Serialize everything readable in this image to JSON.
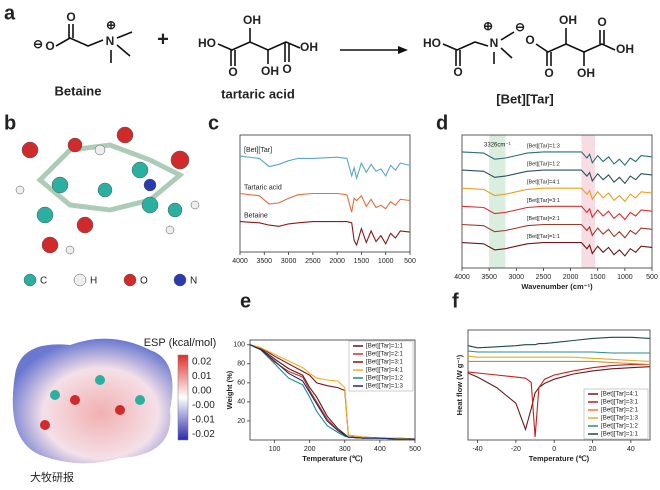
{
  "panel_labels": [
    "a",
    "b",
    "c",
    "d",
    "e",
    "f"
  ],
  "scheme": {
    "betaine": {
      "atoms": [
        "⊖",
        "O",
        "O",
        "N",
        "⊕"
      ],
      "name": "Betaine"
    },
    "plus": "+",
    "tartaric_acid": {
      "atoms": [
        "HO",
        "O",
        "OH",
        "OH",
        "O",
        "OH"
      ],
      "name": "tartaric acid"
    },
    "product": {
      "atoms": [
        "HO",
        "O",
        "N",
        "⊕",
        "⊖",
        "O",
        "O",
        "OH",
        "OH",
        "O",
        "OH"
      ],
      "name": "[Bet][Tar]"
    }
  },
  "atom_legend": [
    "C",
    "H",
    "O",
    "N"
  ],
  "esp": {
    "title": "ESP (kcal/mol)",
    "ticks": [
      "0.02",
      "0.01",
      "0.00",
      "-0.00",
      "-0.01",
      "-0.02"
    ]
  },
  "watermark": "大牧研报",
  "chart_data": [
    {
      "type": "line",
      "legend": "inline",
      "x": [
        4000,
        3600,
        3400,
        3200,
        3000,
        2800,
        2500,
        2000,
        1800,
        1700,
        1650,
        1600,
        1500,
        1400,
        1300,
        1200,
        1100,
        1000,
        900,
        800,
        700,
        500
      ],
      "xlim": [
        4000,
        500
      ],
      "xticks": [
        4000,
        3500,
        3000,
        2500,
        2000,
        1500,
        1000,
        500
      ],
      "ylim": [
        0,
        10
      ],
      "series": [
        {
          "name": "[Bet][Tar]",
          "color": "#5aa6c8",
          "values": [
            8.2,
            8.0,
            7.3,
            7.5,
            7.8,
            8.0,
            8.0,
            8.1,
            8.0,
            6.5,
            7.2,
            6.3,
            7.6,
            6.8,
            7.5,
            6.9,
            7.1,
            6.5,
            7.4,
            7.0,
            7.6,
            7.4
          ]
        },
        {
          "name": "Tartaric acid",
          "color": "#e0703a",
          "values": [
            5.0,
            4.8,
            4.1,
            4.2,
            4.6,
            4.9,
            5.0,
            5.0,
            4.9,
            3.4,
            4.6,
            4.4,
            4.8,
            3.9,
            4.5,
            3.8,
            4.0,
            3.7,
            4.3,
            4.0,
            4.5,
            4.4
          ]
        },
        {
          "name": "Betaine",
          "color": "#8b1a1a",
          "values": [
            2.6,
            2.5,
            2.3,
            2.2,
            2.4,
            2.5,
            2.6,
            2.6,
            2.6,
            2.5,
            1.0,
            0.6,
            2.0,
            0.8,
            1.8,
            0.9,
            1.4,
            0.7,
            1.6,
            1.2,
            1.8,
            1.7
          ]
        }
      ]
    },
    {
      "type": "line",
      "legend": "inline",
      "xlabel": "Wavenumber (cm⁻¹)",
      "annotation": "3326cm⁻¹",
      "bands": [
        [
          3500,
          3200
        ],
        [
          1800,
          1550
        ]
      ],
      "band_colors": [
        "#cfead6",
        "#f6d3dc"
      ],
      "x": [
        4000,
        3600,
        3400,
        3200,
        3000,
        2800,
        2500,
        2000,
        1800,
        1700,
        1650,
        1600,
        1500,
        1400,
        1300,
        1200,
        1100,
        1000,
        900,
        800,
        700,
        500
      ],
      "xlim": [
        4000,
        500
      ],
      "xticks": [
        4000,
        3500,
        3000,
        2500,
        2000,
        1500,
        1000,
        500
      ],
      "ylim": [
        1,
        12
      ],
      "series": [
        {
          "name": "[Bet][Tar]=1:3",
          "color": "#2a6f7a",
          "values": [
            10.6,
            10.5,
            10,
            10.1,
            10.3,
            10.5,
            10.6,
            10.6,
            10.6,
            10.1,
            10.4,
            9.7,
            10.3,
            9.8,
            10.2,
            9.6,
            10,
            9.5,
            10.1,
            9.8,
            10.3,
            10.2
          ]
        },
        {
          "name": "[Bet][Tar]=1:2",
          "color": "#2f4f5f",
          "values": [
            9.1,
            9,
            8.5,
            8.6,
            8.8,
            9,
            9.1,
            9.1,
            9.1,
            8.6,
            8.9,
            8.2,
            8.8,
            8.3,
            8.7,
            8.1,
            8.5,
            8,
            8.6,
            8.3,
            8.8,
            8.7
          ]
        },
        {
          "name": "[Bet][Tar]=4:1",
          "color": "#e8a020",
          "values": [
            7.6,
            7.5,
            7,
            7.1,
            7.3,
            7.5,
            7.6,
            7.6,
            7.6,
            7.1,
            7.4,
            6.7,
            7.3,
            6.8,
            7.2,
            6.6,
            7,
            6.5,
            7.1,
            6.8,
            7.3,
            7.2
          ]
        },
        {
          "name": "[Bet][Tar]=3:1",
          "color": "#d83030",
          "values": [
            6.1,
            6,
            5.5,
            5.6,
            5.8,
            6,
            6.1,
            6.1,
            6.1,
            5.6,
            5.9,
            5.2,
            5.8,
            5.3,
            5.7,
            5.1,
            5.5,
            5,
            5.6,
            5.3,
            5.8,
            5.7
          ]
        },
        {
          "name": "[Bet][Tar]=2:1",
          "color": "#9a3a2a",
          "values": [
            4.6,
            4.5,
            4,
            4.1,
            4.3,
            4.5,
            4.6,
            4.6,
            4.6,
            4.1,
            4.4,
            3.7,
            4.3,
            3.8,
            4.2,
            3.6,
            4,
            3.5,
            4.1,
            3.8,
            4.3,
            4.2
          ]
        },
        {
          "name": "[Bet][Tar]=1:1",
          "color": "#6a1a1a",
          "values": [
            3.1,
            3,
            2.5,
            2.6,
            2.8,
            3,
            3.1,
            3.1,
            3.1,
            2.6,
            2.9,
            2.2,
            2.8,
            2.3,
            2.7,
            2.1,
            2.5,
            2,
            2.6,
            2.3,
            2.8,
            2.7
          ]
        }
      ]
    },
    {
      "type": "line",
      "legend": "upper right",
      "xlabel": "Temperature (℃)",
      "ylabel": "Weight (%)",
      "x": [
        30,
        60,
        100,
        140,
        180,
        200,
        220,
        250,
        280,
        300,
        310,
        350,
        400,
        450,
        500
      ],
      "xlim": [
        30,
        500
      ],
      "xticks": [
        100,
        200,
        300,
        400,
        500
      ],
      "ylim": [
        0,
        105
      ],
      "yticks": [
        20,
        40,
        60,
        80,
        100
      ],
      "series": [
        {
          "name": "[Bet][Tar]=1:1",
          "color": "#5a1a1a",
          "values": [
            100,
            96,
            85,
            75,
            68,
            55,
            45,
            25,
            12,
            6,
            3,
            2,
            2,
            1,
            1
          ]
        },
        {
          "name": "[Bet][Tar]=2:1",
          "color": "#d03030",
          "values": [
            100,
            95,
            82,
            72,
            66,
            52,
            40,
            22,
            10,
            5,
            3,
            2,
            2,
            1,
            1
          ]
        },
        {
          "name": "[Bet][Tar]=3:1",
          "color": "#8a1010",
          "values": [
            100,
            97,
            88,
            80,
            72,
            68,
            60,
            57,
            55,
            52,
            5,
            3,
            2,
            2,
            1
          ]
        },
        {
          "name": "[Bet][Tar]=4:1",
          "color": "#f0b020",
          "values": [
            100,
            97,
            90,
            83,
            76,
            70,
            65,
            63,
            62,
            55,
            5,
            3,
            2,
            2,
            1
          ]
        },
        {
          "name": "[Bet][Tar]=1:2",
          "color": "#1a8a8a",
          "values": [
            100,
            95,
            80,
            65,
            58,
            45,
            30,
            15,
            8,
            4,
            3,
            2,
            2,
            1,
            1
          ]
        },
        {
          "name": "[Bet][Tar]=1:3",
          "color": "#1a2a6a",
          "values": [
            100,
            95,
            83,
            70,
            62,
            50,
            38,
            20,
            10,
            5,
            3,
            2,
            2,
            1,
            1
          ]
        }
      ]
    },
    {
      "type": "line",
      "legend": "lower right",
      "xlabel": "Temperature (℃)",
      "ylabel": "Heat flow (W g⁻¹)",
      "x": [
        -45,
        -40,
        -30,
        -20,
        -15,
        -12,
        -10,
        -8,
        -5,
        0,
        10,
        20,
        30,
        40,
        50
      ],
      "xlim": [
        -45,
        50
      ],
      "xticks": [
        -40,
        -20,
        0,
        20,
        40
      ],
      "ylim": [
        0,
        10.5
      ],
      "series": [
        {
          "name": "[Bet][Tar]=4:1",
          "color": "#6a1a1a",
          "values": [
            6.4,
            6.0,
            5.0,
            3.5,
            1.0,
            3.0,
            4.5,
            5.0,
            5.4,
            5.8,
            6.3,
            6.6,
            6.8,
            6.9,
            7.0
          ]
        },
        {
          "name": "[Bet][Tar]=3:1",
          "color": "#c02020",
          "values": [
            6.5,
            6.4,
            6.2,
            6,
            5.9,
            5.5,
            0.3,
            5.0,
            5.8,
            6.2,
            6.6,
            6.9,
            7.1,
            7.2,
            7.2
          ]
        },
        {
          "name": "[Bet][Tar]=2:1",
          "color": "#e08030",
          "values": [
            7.5,
            7.5,
            7.5,
            7.5,
            7.5,
            7.5,
            7.5,
            7.5,
            7.5,
            7.5,
            7.5,
            7.5,
            7.4,
            7.3,
            7.2
          ]
        },
        {
          "name": "[Bet][Tar]=1:3",
          "color": "#e0b020",
          "values": [
            8,
            7.9,
            7.9,
            7.9,
            7.9,
            7.9,
            7.9,
            7.9,
            7.9,
            7.9,
            7.9,
            7.8,
            7.7,
            7.6,
            7.5
          ]
        },
        {
          "name": "[Bet][Tar]=1:2",
          "color": "#2a8a8a",
          "values": [
            8.5,
            8.4,
            8.4,
            8.4,
            8.4,
            8.4,
            8.4,
            8.4,
            8.4,
            8.4,
            8.4,
            8.4,
            8.3,
            8.3,
            8.3
          ]
        },
        {
          "name": "[Bet][Tar]=1:1",
          "color": "#1a4a4a",
          "values": [
            9,
            8.8,
            8.9,
            9,
            9.1,
            9.1,
            9.1,
            9.2,
            9.2,
            9.3,
            9.5,
            9.7,
            9.8,
            9.8,
            9.7
          ]
        }
      ]
    }
  ]
}
